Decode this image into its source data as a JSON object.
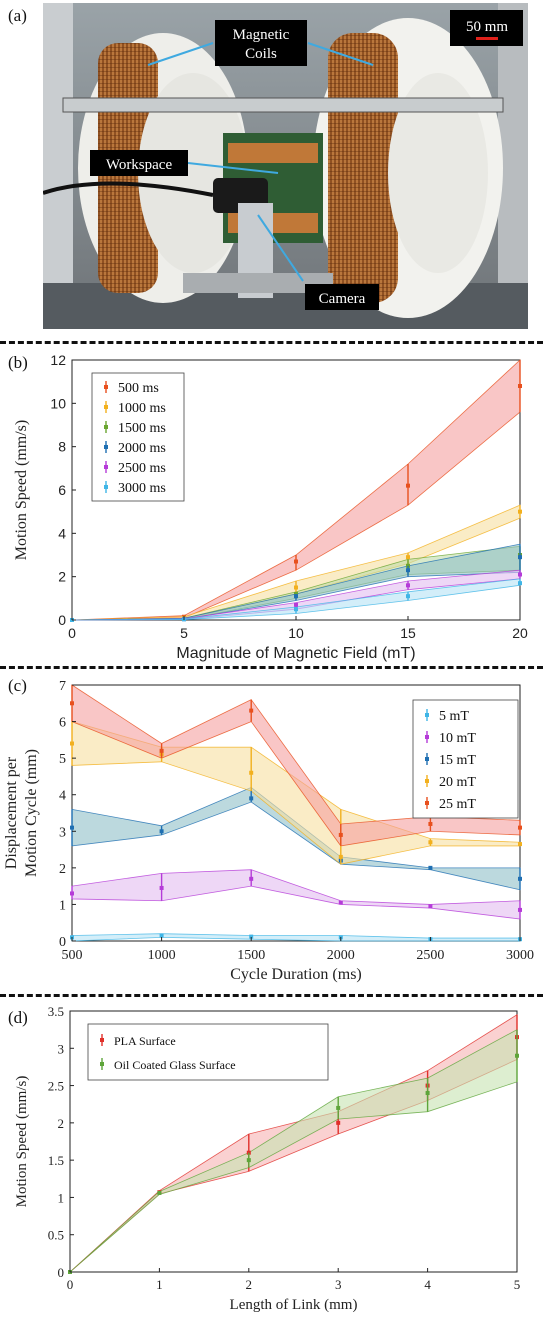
{
  "panel_a": {
    "label": "(a)",
    "scale_bar": "50 mm",
    "labels": [
      "Magnetic\nCoils",
      "Workspace",
      "Camera"
    ]
  },
  "chart_data": [
    {
      "id": "b",
      "label": "(b)",
      "type": "line",
      "band": true,
      "xlabel": "Magnitude of Magnetic Field (mT)",
      "ylabel": "Motion Speed (mm/s)",
      "xlim": [
        0,
        20
      ],
      "ylim": [
        0,
        12
      ],
      "xticks": [
        0,
        5,
        10,
        15,
        20
      ],
      "yticks": [
        0,
        2,
        4,
        6,
        8,
        10,
        12
      ],
      "legend": "top-left",
      "x": [
        0,
        5,
        10,
        15,
        20
      ],
      "series": [
        {
          "name": "500 ms",
          "color": "#e8501e",
          "fill": "#f5a0a0",
          "values": [
            0,
            0.15,
            2.7,
            6.2,
            10.8
          ],
          "low": [
            0,
            0.1,
            2.3,
            5.3,
            9.6
          ],
          "high": [
            0,
            0.2,
            3.0,
            7.2,
            12.0
          ]
        },
        {
          "name": "1000 ms",
          "color": "#f2b01e",
          "fill": "#f7dfa0",
          "values": [
            0,
            0.1,
            1.5,
            2.9,
            5.0
          ],
          "low": [
            0,
            0.05,
            1.2,
            2.6,
            4.7
          ],
          "high": [
            0,
            0.15,
            1.8,
            3.1,
            5.3
          ]
        },
        {
          "name": "1500 ms",
          "color": "#6aa531",
          "fill": "#bfdca8",
          "values": [
            0,
            0.05,
            1.2,
            2.5,
            3.0
          ],
          "low": [
            0,
            0.03,
            1.0,
            2.1,
            2.3
          ],
          "high": [
            0,
            0.08,
            1.3,
            2.8,
            3.4
          ]
        },
        {
          "name": "2000 ms",
          "color": "#1f6fb2",
          "fill": "#8fc0c8",
          "values": [
            0,
            0.05,
            1.1,
            2.3,
            2.9
          ],
          "low": [
            0,
            0.03,
            0.9,
            2.0,
            2.2
          ],
          "high": [
            0,
            0.08,
            1.2,
            2.5,
            3.5
          ]
        },
        {
          "name": "2500 ms",
          "color": "#b53bd8",
          "fill": "#e3bdf0",
          "values": [
            0,
            0.04,
            0.7,
            1.6,
            2.1
          ],
          "low": [
            0,
            0.02,
            0.5,
            1.4,
            1.9
          ],
          "high": [
            0,
            0.06,
            0.8,
            1.8,
            2.3
          ]
        },
        {
          "name": "3000 ms",
          "color": "#3fb5e6",
          "fill": "#b5e3f5",
          "values": [
            0,
            0.03,
            0.5,
            1.1,
            1.7
          ],
          "low": [
            0,
            0.02,
            0.3,
            0.9,
            1.6
          ],
          "high": [
            0,
            0.05,
            0.6,
            1.3,
            1.9
          ]
        }
      ]
    },
    {
      "id": "c",
      "label": "(c)",
      "type": "line",
      "band": true,
      "xlabel": "Cycle Duration (ms)",
      "ylabel": "Displacement per\nMotion Cycle (mm)",
      "xlim": [
        500,
        3000
      ],
      "ylim": [
        0,
        7
      ],
      "xticks": [
        500,
        1000,
        1500,
        2000,
        2500,
        3000
      ],
      "yticks": [
        0,
        1,
        2,
        3,
        4,
        5,
        6,
        7
      ],
      "legend": "top-right",
      "x": [
        500,
        1000,
        1500,
        2000,
        2500,
        3000
      ],
      "series": [
        {
          "name": "5 mT",
          "color": "#3fb5e6",
          "fill": "#b5e3f5",
          "values": [
            0.1,
            0.15,
            0.12,
            0.1,
            0.05,
            0.05
          ],
          "low": [
            0.0,
            0.1,
            0.05,
            0.0,
            0.0,
            0.0
          ],
          "high": [
            0.15,
            0.2,
            0.15,
            0.15,
            0.08,
            0.08
          ]
        },
        {
          "name": "10 mT",
          "color": "#b53bd8",
          "fill": "#e3bdf0",
          "values": [
            1.3,
            1.45,
            1.7,
            1.05,
            0.95,
            0.85
          ],
          "low": [
            1.15,
            1.1,
            1.5,
            1.0,
            0.9,
            0.6
          ],
          "high": [
            1.5,
            1.85,
            1.95,
            1.1,
            1.0,
            1.1
          ]
        },
        {
          "name": "15 mT",
          "color": "#1f6fb2",
          "fill": "#8fc0c8",
          "values": [
            3.1,
            3.0,
            3.9,
            2.2,
            2.0,
            1.7
          ],
          "low": [
            2.6,
            2.9,
            3.8,
            2.1,
            1.95,
            1.4
          ],
          "high": [
            3.6,
            3.15,
            4.2,
            2.3,
            2.0,
            2.0
          ]
        },
        {
          "name": "20 mT",
          "color": "#f2b01e",
          "fill": "#f7dfa0",
          "values": [
            5.4,
            5.1,
            4.6,
            2.3,
            2.7,
            2.65
          ],
          "low": [
            4.8,
            4.9,
            4.1,
            2.1,
            2.6,
            2.6
          ],
          "high": [
            6.0,
            5.3,
            5.3,
            3.6,
            2.8,
            2.7
          ]
        },
        {
          "name": "25 mT",
          "color": "#e8501e",
          "fill": "#f5a0a0",
          "values": [
            6.5,
            5.2,
            6.3,
            2.9,
            3.2,
            3.1
          ],
          "low": [
            6.0,
            5.0,
            6.0,
            2.6,
            3.0,
            2.9
          ],
          "high": [
            7.0,
            5.4,
            6.6,
            3.2,
            3.4,
            3.3
          ]
        }
      ]
    },
    {
      "id": "d",
      "label": "(d)",
      "type": "line",
      "band": true,
      "xlabel": "Length of Link (mm)",
      "ylabel": "Motion Speed (mm/s)",
      "xlim": [
        0,
        5
      ],
      "ylim": [
        0,
        3.5
      ],
      "xticks": [
        0,
        1,
        2,
        3,
        4,
        5
      ],
      "yticks": [
        0,
        0.5,
        1,
        1.5,
        2,
        2.5,
        3,
        3.5
      ],
      "legend": "top-left",
      "x": [
        0,
        1,
        2,
        3,
        4,
        5
      ],
      "series": [
        {
          "name": "PLA Surface",
          "color": "#e0302a",
          "fill": "#f7b3b3",
          "values": [
            0,
            1.07,
            1.6,
            2.0,
            2.5,
            3.15
          ],
          "low": [
            0,
            1.05,
            1.35,
            1.85,
            2.3,
            2.85
          ],
          "high": [
            0,
            1.09,
            1.85,
            2.15,
            2.7,
            3.45
          ]
        },
        {
          "name": "Oil Coated Glass Surface",
          "color": "#5ea53a",
          "fill": "#c6e2b0",
          "values": [
            0,
            1.06,
            1.5,
            2.2,
            2.4,
            2.9
          ],
          "low": [
            0,
            1.04,
            1.4,
            2.05,
            2.15,
            2.55
          ],
          "high": [
            0,
            1.08,
            1.6,
            2.35,
            2.6,
            3.25
          ]
        }
      ]
    }
  ]
}
